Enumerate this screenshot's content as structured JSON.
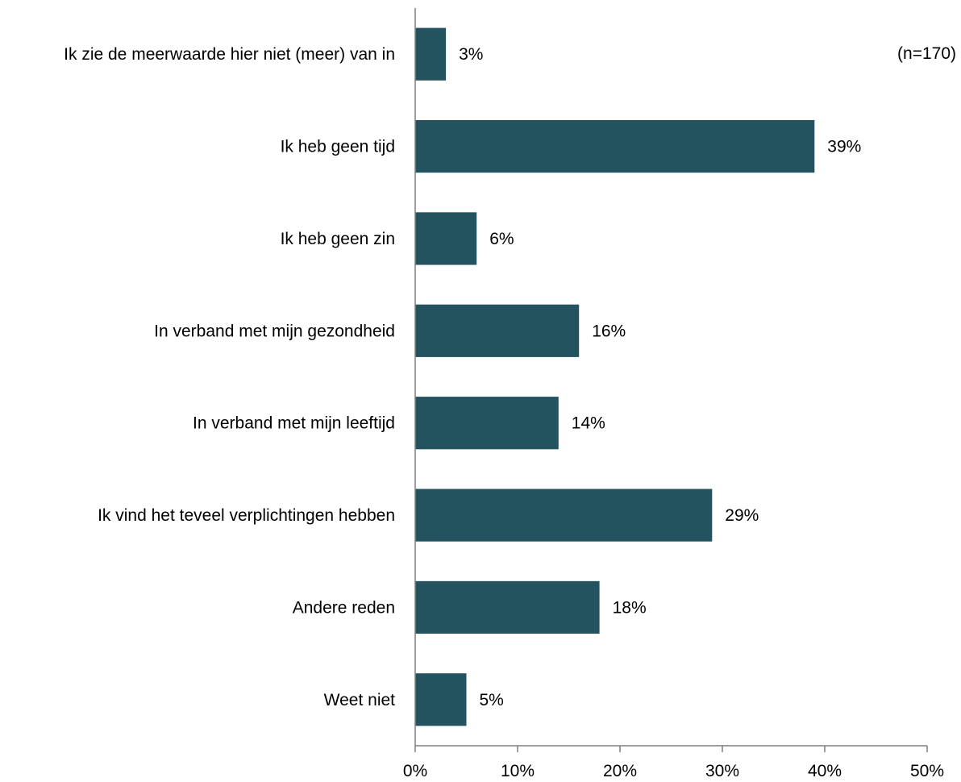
{
  "chart_data": {
    "type": "bar",
    "orientation": "horizontal",
    "categories": [
      "Ik zie de meerwaarde hier niet (meer) van in",
      "Ik heb geen tijd",
      "Ik heb geen zin",
      "In verband met mijn gezondheid",
      "In verband met mijn leeftijd",
      "Ik vind het teveel verplichtingen hebben",
      "Andere reden",
      "Weet niet"
    ],
    "values": [
      3,
      39,
      6,
      16,
      14,
      29,
      18,
      5
    ],
    "value_labels": [
      "3%",
      "39%",
      "6%",
      "16%",
      "14%",
      "29%",
      "18%",
      "5%"
    ],
    "xlim": [
      0,
      50
    ],
    "x_ticks": [
      0,
      10,
      20,
      30,
      40,
      50
    ],
    "x_tick_labels": [
      "0%",
      "10%",
      "20%",
      "30%",
      "40%",
      "50%"
    ],
    "annotation": "(n=170)",
    "bar_color": "#245360",
    "grid": false,
    "legend": "none"
  }
}
